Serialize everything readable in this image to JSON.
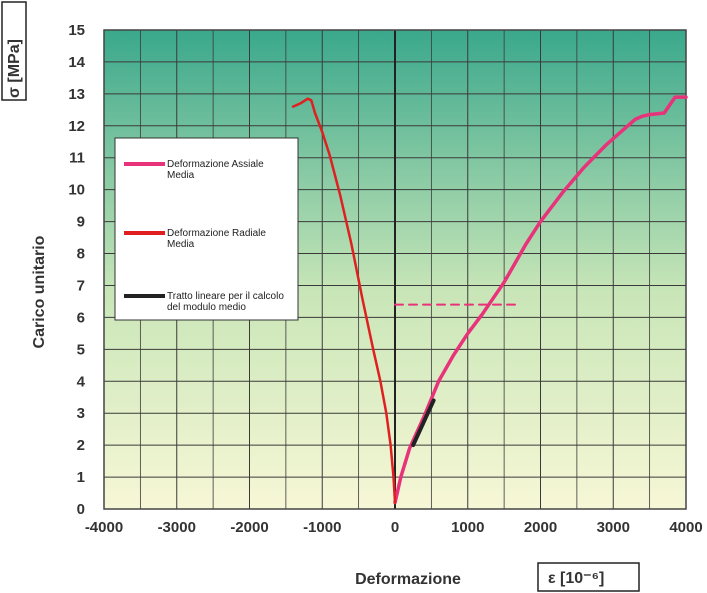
{
  "chart_data": {
    "type": "line",
    "title": "",
    "xlabel": "Deformazione",
    "xunit": "ε  [10⁻⁶]",
    "ylabel": "Carico unitario",
    "yunit": "σ  [MPa]",
    "xlim": [
      -4000,
      4000
    ],
    "ylim": [
      0,
      15
    ],
    "xticks": [
      -4000,
      -3000,
      -2000,
      -1000,
      0,
      1000,
      2000,
      3000,
      4000
    ],
    "yticks": [
      0,
      1,
      2,
      3,
      4,
      5,
      6,
      7,
      8,
      9,
      10,
      11,
      12,
      13,
      14,
      15
    ],
    "grid": true,
    "legend_placement": "upper-left",
    "background_gradient": [
      "#f5f5d0",
      "#2aa88a"
    ],
    "series": [
      {
        "name": "Deformazione Assiale Media",
        "color": "#e8327a",
        "width": 3.5,
        "dash": "",
        "x": [
          0,
          80,
          200,
          400,
          600,
          800,
          1000,
          1200,
          1500,
          1800,
          2000,
          2300,
          2600,
          2900,
          3100,
          3300,
          3400,
          3500,
          3700,
          3850,
          4000
        ],
        "y": [
          0.2,
          1.0,
          1.9,
          2.9,
          4.0,
          4.8,
          5.5,
          6.1,
          7.1,
          8.3,
          9.0,
          9.9,
          10.7,
          11.4,
          11.8,
          12.2,
          12.3,
          12.35,
          12.4,
          12.9,
          12.9
        ]
      },
      {
        "name": "Deformazione Radiale Media",
        "color": "#e02020",
        "width": 2.5,
        "dash": "",
        "x": [
          0,
          -20,
          -60,
          -120,
          -200,
          -300,
          -450,
          -600,
          -750,
          -900,
          -1000,
          -1100,
          -1150,
          -1200,
          -1300,
          -1400
        ],
        "y": [
          0.2,
          1.0,
          2.0,
          3.0,
          4.0,
          5.0,
          6.6,
          8.3,
          9.8,
          11.1,
          11.8,
          12.4,
          12.8,
          12.85,
          12.7,
          12.6
        ]
      },
      {
        "name": "Tratto lineare per il calcolo del modulo medio",
        "color": "#222222",
        "width": 4,
        "dash": "",
        "x": [
          250,
          530
        ],
        "y": [
          2.0,
          3.4
        ]
      },
      {
        "name": "",
        "color": "#e8327a",
        "width": 2,
        "dash": "8,6",
        "x": [
          0,
          1650
        ],
        "y": [
          6.4,
          6.4
        ]
      }
    ],
    "legend": [
      {
        "label": "Deformazione Assiale Media",
        "color": "#e8327a",
        "lines": [
          "Deformazione Assiale",
          "Media"
        ]
      },
      {
        "label": "Deformazione Radiale Media",
        "color": "#e02020",
        "lines": [
          "Deformazione Radiale",
          "Media"
        ]
      },
      {
        "label": "Tratto lineare per il calcolo del modulo medio",
        "color": "#222222",
        "lines": [
          "Tratto lineare per il calcolo",
          "del modulo medio"
        ]
      }
    ]
  }
}
